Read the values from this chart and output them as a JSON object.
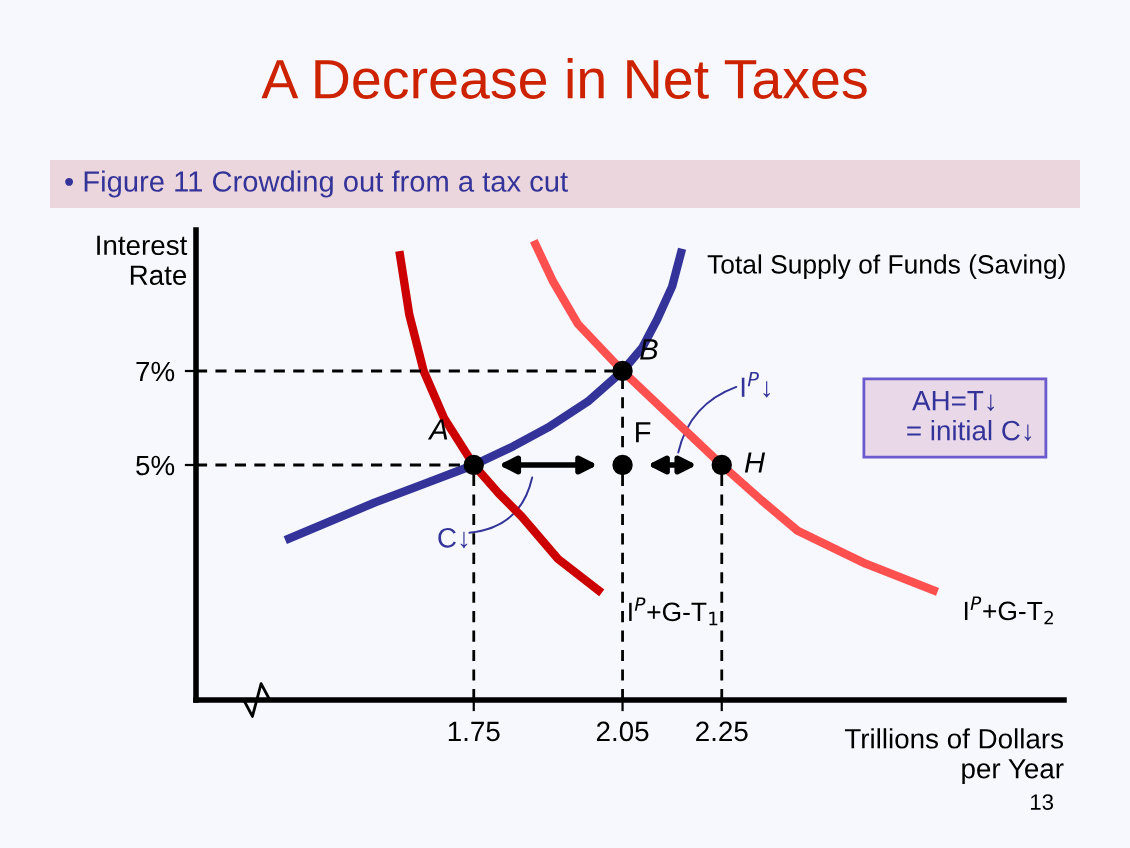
{
  "chart_data": {
    "type": "line",
    "title": "A Decrease in Net Taxes",
    "subtitle": "• Figure 11 Crowding out from a tax cut",
    "xlabel": "Trillions of Dollars\nper Year",
    "ylabel": "Interest\nRate",
    "xlim": [
      1.19,
      2.94
    ],
    "ylim": [
      0,
      10
    ],
    "xticks": [
      1.75,
      2.05,
      2.25
    ],
    "yticks": [
      {
        "value": 5,
        "label": "5%"
      },
      {
        "value": 7,
        "label": "7%"
      }
    ],
    "grid": false,
    "marker": "none",
    "series": [
      {
        "name": "Total Supply of Funds (Saving)",
        "color": "#333399",
        "x": [
          1.37,
          1.46,
          1.55,
          1.65,
          1.75,
          1.83,
          1.9,
          1.98,
          2.05,
          2.09,
          2.12,
          2.15,
          2.17
        ],
        "values": [
          3.4,
          3.8,
          4.2,
          4.6,
          5,
          5.4,
          5.8,
          6.35,
          7,
          7.5,
          8.1,
          8.8,
          9.6
        ]
      },
      {
        "name": "I$^{P}$+G-T$_{1}$",
        "color": "#cc0000",
        "x": [
          1.6,
          1.62,
          1.649,
          1.69,
          1.75,
          1.8,
          1.847,
          1.92,
          2.008
        ],
        "values": [
          9.55,
          8.2,
          7,
          6,
          5,
          4.4,
          3.9,
          3,
          2.28
        ]
      },
      {
        "name": "I$^{P}$+G-T$_{2}$",
        "color": "#ff5050",
        "x": [
          1.871,
          1.91,
          1.96,
          2.05,
          2.15,
          2.25,
          2.33,
          2.403,
          2.54,
          2.685
        ],
        "values": [
          9.77,
          8.9,
          8,
          7,
          6,
          5,
          4.25,
          3.6,
          2.9,
          2.3
        ]
      },
      {
        "line_style": "dashed",
        "color": "#000000",
        "x": [
          1.19,
          2.05
        ],
        "values": [
          7,
          7
        ]
      },
      {
        "line_style": "dashed",
        "color": "#000000",
        "x": [
          1.19,
          1.75
        ],
        "values": [
          5,
          5
        ]
      },
      {
        "line_style": "dashed",
        "color": "#000000",
        "x": [
          1.75,
          1.75
        ],
        "values": [
          0,
          5
        ]
      },
      {
        "line_style": "dashed",
        "color": "#000000",
        "x": [
          2.05,
          2.05
        ],
        "values": [
          0,
          7
        ]
      },
      {
        "line_style": "dashed",
        "color": "#000000",
        "x": [
          2.25,
          2.25
        ],
        "values": [
          0,
          5
        ]
      },
      {
        "type": "scatter",
        "marker": "circle",
        "color": "#000000",
        "x": [
          1.75,
          2.05,
          2.05,
          2.25
        ],
        "values": [
          5,
          7,
          5,
          5
        ]
      }
    ],
    "annotations": [
      {
        "text": "A",
        "x": 1.75,
        "y": 5
      },
      {
        "text": "B",
        "x": 2.05,
        "y": 7
      },
      {
        "text": "F",
        "x": 2.05,
        "y": 5
      },
      {
        "text": "H",
        "x": 2.25,
        "y": 5
      },
      "C↓",
      "I$^{P}$↓",
      "AH=T↓\n    = initial C↓",
      "13"
    ]
  }
}
